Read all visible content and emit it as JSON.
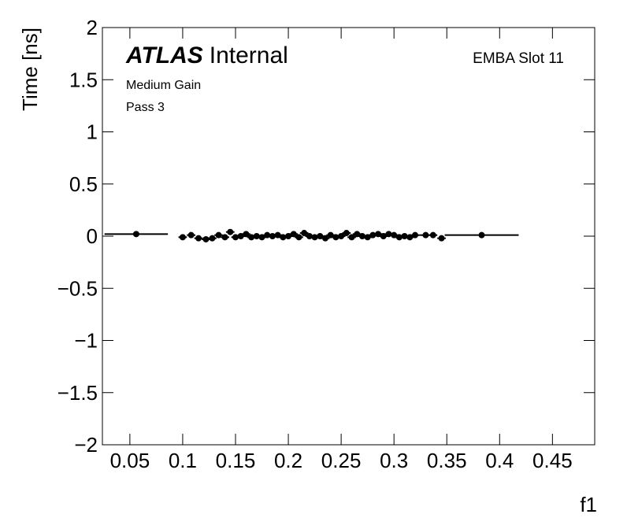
{
  "chart_data": {
    "type": "scatter",
    "x_label": "f1",
    "y_label": "Time [ns]",
    "annotations": [
      "ATLAS",
      "Internal",
      "Medium Gain",
      "Pass 3",
      "EMBA Slot 11"
    ],
    "xlim": [
      0.024,
      0.49
    ],
    "ylim": [
      -2,
      2
    ],
    "xticks": [
      0.05,
      0.1,
      0.15,
      0.2,
      0.25,
      0.3,
      0.35,
      0.4,
      0.45
    ],
    "yticks": [
      {
        "value": -2,
        "label": "−2"
      },
      {
        "value": -1.5,
        "label": "−1.5"
      },
      {
        "value": -1,
        "label": "−1"
      },
      {
        "value": -0.5,
        "label": "−0.5"
      },
      0,
      0.5,
      1,
      1.5,
      2
    ],
    "color": "#000000",
    "series": [
      {
        "x": [
          0.056,
          0.1,
          0.108,
          0.115,
          0.122,
          0.128,
          0.134,
          0.14,
          0.145,
          0.15,
          0.155,
          0.16,
          0.165,
          0.17,
          0.175,
          0.18,
          0.185,
          0.19,
          0.195,
          0.2,
          0.205,
          0.21,
          0.215,
          0.22,
          0.225,
          0.23,
          0.235,
          0.24,
          0.245,
          0.25,
          0.255,
          0.26,
          0.265,
          0.27,
          0.275,
          0.28,
          0.285,
          0.29,
          0.295,
          0.3,
          0.305,
          0.31,
          0.315,
          0.32,
          0.33,
          0.337,
          0.345,
          0.383
        ],
        "values": [
          0.02,
          -0.01,
          0.01,
          -0.02,
          -0.03,
          -0.02,
          0.01,
          -0.01,
          0.04,
          -0.01,
          0,
          0.02,
          -0.01,
          0,
          -0.01,
          0.01,
          0,
          0.01,
          -0.01,
          0,
          0.02,
          -0.01,
          0.03,
          0,
          -0.01,
          0,
          -0.02,
          0.01,
          -0.01,
          0,
          0.03,
          -0.01,
          0.02,
          0,
          -0.01,
          0.01,
          0.02,
          0,
          0.02,
          0.01,
          -0.01,
          0,
          -0.01,
          0.01,
          0.01,
          0.01,
          -0.02,
          0.01
        ],
        "xerr": [
          0.03,
          0.004,
          0.004,
          0.004,
          0.004,
          0.004,
          0.004,
          0.004,
          0.004,
          0.004,
          0.004,
          0.004,
          0.004,
          0.004,
          0.004,
          0.004,
          0.004,
          0.004,
          0.004,
          0.004,
          0.004,
          0.004,
          0.004,
          0.004,
          0.004,
          0.004,
          0.004,
          0.004,
          0.004,
          0.004,
          0.004,
          0.004,
          0.004,
          0.004,
          0.004,
          0.004,
          0.004,
          0.004,
          0.004,
          0.004,
          0.004,
          0.004,
          0.004,
          0.005,
          0.005,
          0.004,
          0.004,
          0.035
        ]
      }
    ]
  }
}
